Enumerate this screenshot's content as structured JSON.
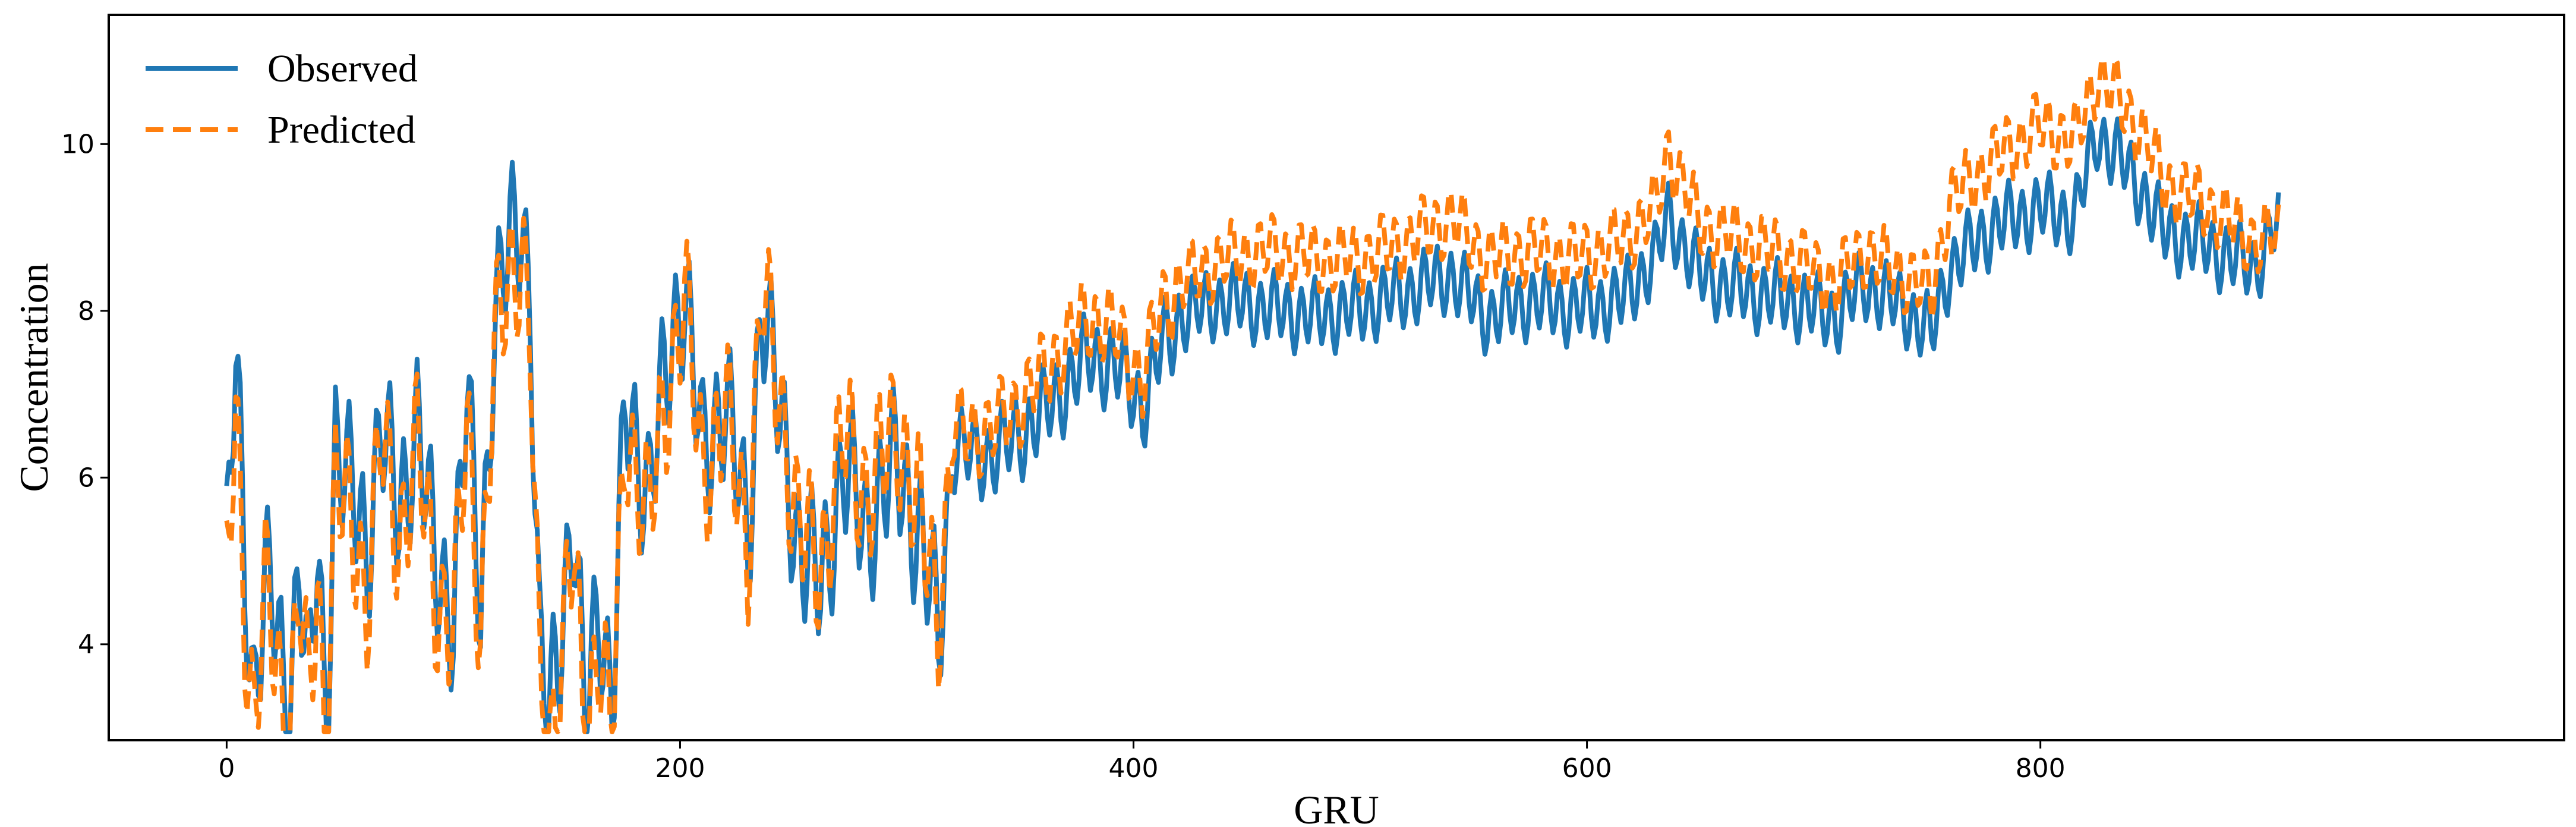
{
  "chart_data": {
    "type": "line",
    "title": "",
    "xlabel": "GRU",
    "ylabel": "Concentration",
    "xlim": [
      -52,
      1031
    ],
    "ylim": [
      2.85,
      11.55
    ],
    "xticks": [
      0,
      200,
      400,
      600,
      800
    ],
    "yticks": [
      4,
      6,
      8,
      10
    ],
    "grid": false,
    "legend_position": "top-left",
    "series": [
      {
        "name": "Observed",
        "color": "#1f77b4",
        "style": "solid",
        "envelope": [
          {
            "x": 0,
            "y": 5.9
          },
          {
            "x": 4,
            "y": 8.3
          },
          {
            "x": 8,
            "y": 5.6
          },
          {
            "x": 12,
            "y": 4.2
          },
          {
            "x": 17,
            "y": 5.7
          },
          {
            "x": 22,
            "y": 5.0
          },
          {
            "x": 27,
            "y": 3.6
          },
          {
            "x": 32,
            "y": 6.0
          },
          {
            "x": 36,
            "y": 4.2
          },
          {
            "x": 40,
            "y": 5.8
          },
          {
            "x": 44,
            "y": 3.7
          },
          {
            "x": 48,
            "y": 7.3
          },
          {
            "x": 55,
            "y": 6.6
          },
          {
            "x": 62,
            "y": 5.9
          },
          {
            "x": 68,
            "y": 7.5
          },
          {
            "x": 76,
            "y": 6.3
          },
          {
            "x": 84,
            "y": 7.5
          },
          {
            "x": 92,
            "y": 5.7
          },
          {
            "x": 100,
            "y": 5.2
          },
          {
            "x": 106,
            "y": 7.8
          },
          {
            "x": 112,
            "y": 5.3
          },
          {
            "x": 118,
            "y": 8.6
          },
          {
            "x": 124,
            "y": 9.5
          },
          {
            "x": 130,
            "y": 10.0
          },
          {
            "x": 134,
            "y": 8.9
          },
          {
            "x": 138,
            "y": 4.6
          },
          {
            "x": 142,
            "y": 3.9
          },
          {
            "x": 148,
            "y": 5.2
          },
          {
            "x": 153,
            "y": 6.3
          },
          {
            "x": 158,
            "y": 3.8
          },
          {
            "x": 164,
            "y": 5.4
          },
          {
            "x": 170,
            "y": 4.0
          },
          {
            "x": 176,
            "y": 7.7
          },
          {
            "x": 186,
            "y": 6.6
          },
          {
            "x": 196,
            "y": 8.4
          },
          {
            "x": 202,
            "y": 9.1
          },
          {
            "x": 210,
            "y": 7.0
          },
          {
            "x": 220,
            "y": 7.8
          },
          {
            "x": 230,
            "y": 6.0
          },
          {
            "x": 236,
            "y": 9.0
          },
          {
            "x": 244,
            "y": 7.5
          },
          {
            "x": 252,
            "y": 6.0
          },
          {
            "x": 262,
            "y": 5.5
          },
          {
            "x": 272,
            "y": 6.9
          },
          {
            "x": 282,
            "y": 6.2
          },
          {
            "x": 296,
            "y": 7.0
          },
          {
            "x": 306,
            "y": 6.0
          },
          {
            "x": 314,
            "y": 5.0
          },
          {
            "x": 320,
            "y": 6.8
          },
          {
            "x": 336,
            "y": 6.7
          },
          {
            "x": 352,
            "y": 7.0
          },
          {
            "x": 366,
            "y": 7.4
          },
          {
            "x": 380,
            "y": 7.9
          },
          {
            "x": 392,
            "y": 7.8
          },
          {
            "x": 404,
            "y": 7.3
          },
          {
            "x": 412,
            "y": 8.0
          },
          {
            "x": 420,
            "y": 8.3
          },
          {
            "x": 440,
            "y": 8.5
          },
          {
            "x": 460,
            "y": 8.4
          },
          {
            "x": 480,
            "y": 8.3
          },
          {
            "x": 500,
            "y": 8.4
          },
          {
            "x": 520,
            "y": 8.6
          },
          {
            "x": 540,
            "y": 8.8
          },
          {
            "x": 556,
            "y": 8.3
          },
          {
            "x": 575,
            "y": 8.5
          },
          {
            "x": 595,
            "y": 8.4
          },
          {
            "x": 615,
            "y": 8.5
          },
          {
            "x": 630,
            "y": 9.0
          },
          {
            "x": 636,
            "y": 9.5
          },
          {
            "x": 650,
            "y": 8.8
          },
          {
            "x": 670,
            "y": 8.6
          },
          {
            "x": 690,
            "y": 8.5
          },
          {
            "x": 710,
            "y": 8.3
          },
          {
            "x": 722,
            "y": 8.7
          },
          {
            "x": 740,
            "y": 8.4
          },
          {
            "x": 752,
            "y": 8.1
          },
          {
            "x": 760,
            "y": 8.9
          },
          {
            "x": 780,
            "y": 9.4
          },
          {
            "x": 800,
            "y": 9.6
          },
          {
            "x": 815,
            "y": 9.5
          },
          {
            "x": 825,
            "y": 10.5
          },
          {
            "x": 835,
            "y": 10.2
          },
          {
            "x": 845,
            "y": 9.8
          },
          {
            "x": 855,
            "y": 9.3
          },
          {
            "x": 870,
            "y": 9.2
          },
          {
            "x": 885,
            "y": 9.0
          },
          {
            "x": 895,
            "y": 8.9
          },
          {
            "x": 905,
            "y": 9.5
          }
        ]
      },
      {
        "name": "Predicted",
        "color": "#ff7f0e",
        "style": "dashed",
        "envelope": [
          {
            "x": 0,
            "y": 5.4
          },
          {
            "x": 4,
            "y": 7.6
          },
          {
            "x": 8,
            "y": 5.2
          },
          {
            "x": 12,
            "y": 3.9
          },
          {
            "x": 17,
            "y": 5.4
          },
          {
            "x": 22,
            "y": 4.6
          },
          {
            "x": 27,
            "y": 3.4
          },
          {
            "x": 32,
            "y": 5.6
          },
          {
            "x": 36,
            "y": 4.0
          },
          {
            "x": 40,
            "y": 5.5
          },
          {
            "x": 44,
            "y": 3.5
          },
          {
            "x": 48,
            "y": 6.8
          },
          {
            "x": 55,
            "y": 6.2
          },
          {
            "x": 62,
            "y": 5.4
          },
          {
            "x": 68,
            "y": 7.3
          },
          {
            "x": 76,
            "y": 6.0
          },
          {
            "x": 84,
            "y": 7.2
          },
          {
            "x": 92,
            "y": 5.4
          },
          {
            "x": 100,
            "y": 5.0
          },
          {
            "x": 106,
            "y": 7.5
          },
          {
            "x": 112,
            "y": 5.0
          },
          {
            "x": 118,
            "y": 8.3
          },
          {
            "x": 124,
            "y": 9.1
          },
          {
            "x": 130,
            "y": 9.6
          },
          {
            "x": 134,
            "y": 8.5
          },
          {
            "x": 138,
            "y": 4.2
          },
          {
            "x": 142,
            "y": 3.3
          },
          {
            "x": 148,
            "y": 4.9
          },
          {
            "x": 153,
            "y": 6.0
          },
          {
            "x": 158,
            "y": 3.4
          },
          {
            "x": 164,
            "y": 5.0
          },
          {
            "x": 170,
            "y": 3.6
          },
          {
            "x": 176,
            "y": 7.4
          },
          {
            "x": 186,
            "y": 6.3
          },
          {
            "x": 196,
            "y": 8.1
          },
          {
            "x": 202,
            "y": 9.0
          },
          {
            "x": 210,
            "y": 6.8
          },
          {
            "x": 220,
            "y": 7.6
          },
          {
            "x": 230,
            "y": 6.0
          },
          {
            "x": 236,
            "y": 9.1
          },
          {
            "x": 244,
            "y": 7.7
          },
          {
            "x": 252,
            "y": 6.2
          },
          {
            "x": 262,
            "y": 5.7
          },
          {
            "x": 272,
            "y": 7.3
          },
          {
            "x": 282,
            "y": 6.6
          },
          {
            "x": 296,
            "y": 7.4
          },
          {
            "x": 306,
            "y": 6.3
          },
          {
            "x": 314,
            "y": 5.2
          },
          {
            "x": 320,
            "y": 7.0
          },
          {
            "x": 336,
            "y": 7.0
          },
          {
            "x": 352,
            "y": 7.4
          },
          {
            "x": 366,
            "y": 7.9
          },
          {
            "x": 380,
            "y": 8.4
          },
          {
            "x": 392,
            "y": 8.2
          },
          {
            "x": 404,
            "y": 7.6
          },
          {
            "x": 412,
            "y": 8.5
          },
          {
            "x": 420,
            "y": 8.7
          },
          {
            "x": 440,
            "y": 9.0
          },
          {
            "x": 460,
            "y": 9.1
          },
          {
            "x": 480,
            "y": 9.0
          },
          {
            "x": 500,
            "y": 9.0
          },
          {
            "x": 520,
            "y": 9.2
          },
          {
            "x": 540,
            "y": 9.5
          },
          {
            "x": 556,
            "y": 9.0
          },
          {
            "x": 575,
            "y": 9.1
          },
          {
            "x": 595,
            "y": 9.0
          },
          {
            "x": 615,
            "y": 9.2
          },
          {
            "x": 630,
            "y": 9.6
          },
          {
            "x": 636,
            "y": 10.3
          },
          {
            "x": 650,
            "y": 9.4
          },
          {
            "x": 670,
            "y": 9.2
          },
          {
            "x": 690,
            "y": 9.0
          },
          {
            "x": 710,
            "y": 8.7
          },
          {
            "x": 722,
            "y": 9.1
          },
          {
            "x": 740,
            "y": 8.8
          },
          {
            "x": 752,
            "y": 8.6
          },
          {
            "x": 760,
            "y": 9.7
          },
          {
            "x": 780,
            "y": 10.2
          },
          {
            "x": 800,
            "y": 10.6
          },
          {
            "x": 815,
            "y": 10.4
          },
          {
            "x": 825,
            "y": 11.2
          },
          {
            "x": 835,
            "y": 10.9
          },
          {
            "x": 845,
            "y": 10.5
          },
          {
            "x": 855,
            "y": 9.9
          },
          {
            "x": 870,
            "y": 9.7
          },
          {
            "x": 885,
            "y": 9.4
          },
          {
            "x": 895,
            "y": 9.2
          },
          {
            "x": 905,
            "y": 9.3
          }
        ]
      }
    ]
  }
}
